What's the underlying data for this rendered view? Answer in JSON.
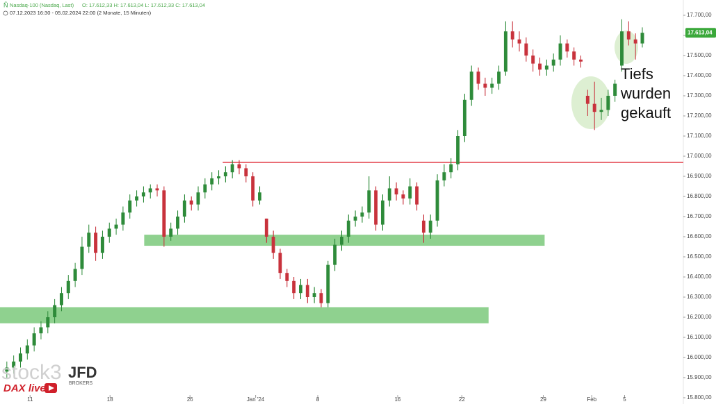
{
  "chart_data": {
    "type": "candlestick",
    "title": "Nasdaq-100 (Nasdaq, Last)",
    "ohlc_text": "O: 17.612,33  H: 17.613,04  L: 17.612,33  C: 17.613,04",
    "subtitle": "07.12.2023 16:30 - 05.02.2024 22:00   (2 Monate, 15 Minuten)",
    "up_color": "#2e8b3a",
    "down_color": "#c8323c",
    "x": [
      1,
      2,
      3,
      4,
      5,
      6,
      7,
      8,
      9,
      10,
      11,
      12,
      13,
      14,
      15,
      16,
      17,
      18,
      19,
      20,
      21,
      22,
      23,
      24,
      25,
      26,
      27,
      28,
      29,
      30,
      31,
      32,
      33,
      34,
      35,
      36,
      37,
      38,
      39,
      40,
      41,
      42,
      43,
      44,
      45,
      46,
      47,
      48,
      49,
      50,
      51,
      52,
      53,
      54,
      55,
      56,
      57,
      58,
      59,
      60,
      61,
      62,
      63,
      64,
      65,
      66,
      67,
      68,
      69,
      70,
      71,
      72,
      73,
      74,
      75,
      76,
      77,
      78,
      79,
      80,
      81,
      82,
      83,
      84,
      85,
      86,
      87,
      88,
      89,
      90,
      91,
      92,
      93,
      94
    ],
    "open": [
      15930,
      15950,
      15980,
      16020,
      16060,
      16120,
      16150,
      16200,
      16260,
      16320,
      16380,
      16440,
      16550,
      16620,
      16520,
      16600,
      16640,
      16660,
      16720,
      16780,
      16800,
      16820,
      16840,
      16830,
      16600,
      16640,
      16700,
      16780,
      16760,
      16820,
      16860,
      16890,
      16900,
      16920,
      16960,
      16940,
      16900,
      16780,
      16690,
      16600,
      16520,
      16420,
      16380,
      16320,
      16360,
      16300,
      16320,
      16270,
      16460,
      16560,
      16600,
      16680,
      16700,
      16720,
      16830,
      16660,
      16780,
      16840,
      16810,
      16790,
      16850,
      16680,
      16620,
      16680,
      16880,
      16920,
      16960,
      17100,
      17280,
      17420,
      17360,
      17340,
      17360,
      17420,
      17620,
      17580,
      17560,
      17500,
      17460,
      17430,
      17450,
      17480,
      17560,
      17520,
      17480,
      17300,
      17260,
      17220,
      17230,
      17300,
      17450,
      17620,
      17580,
      17560
    ],
    "high": [
      15980,
      16010,
      16050,
      16090,
      16150,
      16180,
      16230,
      16290,
      16350,
      16410,
      16470,
      16600,
      16660,
      16650,
      16630,
      16670,
      16690,
      16750,
      16810,
      16830,
      16850,
      16860,
      16860,
      16850,
      16670,
      16730,
      16810,
      16800,
      16850,
      16890,
      16920,
      16930,
      16950,
      16980,
      16980,
      16960,
      16920,
      16850,
      16690,
      16630,
      16540,
      16440,
      16400,
      16390,
      16390,
      16350,
      16340,
      16480,
      16590,
      16630,
      16710,
      16730,
      16750,
      16900,
      16850,
      16810,
      16900,
      16870,
      16830,
      16890,
      16870,
      16710,
      16710,
      16910,
      16960,
      16990,
      17130,
      17310,
      17450,
      17440,
      17390,
      17390,
      17450,
      17670,
      17670,
      17620,
      17590,
      17530,
      17490,
      17480,
      17510,
      17600,
      17580,
      17540,
      17500,
      17330,
      17370,
      17290,
      17330,
      17380,
      17680,
      17670,
      17610,
      17640
    ],
    "low": [
      15900,
      15920,
      15950,
      15990,
      16030,
      16090,
      16120,
      16170,
      16230,
      16290,
      16350,
      16410,
      16520,
      16480,
      16490,
      16570,
      16610,
      16630,
      16690,
      16750,
      16770,
      16790,
      16800,
      16550,
      16580,
      16610,
      16670,
      16730,
      16730,
      16790,
      16830,
      16860,
      16870,
      16890,
      16910,
      16870,
      16750,
      16760,
      16570,
      16490,
      16390,
      16350,
      16290,
      16290,
      16270,
      16270,
      16250,
      16250,
      16430,
      16530,
      16570,
      16650,
      16670,
      16690,
      16630,
      16630,
      16750,
      16780,
      16760,
      16760,
      16730,
      16570,
      16590,
      16650,
      16850,
      16890,
      16930,
      17070,
      17250,
      17330,
      17300,
      17310,
      17330,
      17400,
      17540,
      17520,
      17470,
      17420,
      17400,
      17400,
      17420,
      17450,
      17490,
      17450,
      17440,
      17200,
      17130,
      17180,
      17200,
      17270,
      17420,
      17550,
      17480,
      17540
    ],
    "close": [
      15950,
      15980,
      16020,
      16060,
      16120,
      16150,
      16200,
      16260,
      16320,
      16380,
      16440,
      16550,
      16620,
      16520,
      16600,
      16640,
      16660,
      16720,
      16780,
      16800,
      16820,
      16840,
      16830,
      16600,
      16640,
      16700,
      16780,
      16760,
      16820,
      16860,
      16890,
      16900,
      16920,
      16960,
      16940,
      16900,
      16780,
      16820,
      16600,
      16520,
      16420,
      16380,
      16320,
      16360,
      16300,
      16320,
      16270,
      16460,
      16560,
      16600,
      16680,
      16700,
      16720,
      16830,
      16660,
      16780,
      16840,
      16810,
      16790,
      16850,
      16760,
      16620,
      16680,
      16880,
      16920,
      16960,
      17100,
      17280,
      17420,
      17360,
      17340,
      17360,
      17420,
      17620,
      17580,
      17560,
      17500,
      17460,
      17430,
      17450,
      17480,
      17560,
      17520,
      17480,
      17470,
      17260,
      17220,
      17230,
      17300,
      17360,
      17620,
      17580,
      17560,
      17613.04
    ],
    "xlim": [
      0,
      100
    ],
    "ylim": [
      15800,
      17700
    ],
    "xticks": [
      {
        "value": 4.4,
        "label": "11"
      },
      {
        "value": 16.1,
        "label": "18"
      },
      {
        "value": 27.8,
        "label": "26"
      },
      {
        "value": 37.4,
        "label": "Jan '24"
      },
      {
        "value": 46.5,
        "label": "8"
      },
      {
        "value": 58.2,
        "label": "16"
      },
      {
        "value": 67.6,
        "label": "22"
      },
      {
        "value": 79.5,
        "label": "29"
      },
      {
        "value": 86.6,
        "label": "Feb"
      },
      {
        "value": 91.4,
        "label": "5"
      }
    ],
    "yticks": [
      {
        "value": 17700,
        "label": "17.700,00"
      },
      {
        "value": 17600,
        "label": "17.600,00"
      },
      {
        "value": 17500,
        "label": "17.500,00"
      },
      {
        "value": 17400,
        "label": "17.400,00"
      },
      {
        "value": 17300,
        "label": "17.300,00"
      },
      {
        "value": 17200,
        "label": "17.200,00"
      },
      {
        "value": 17100,
        "label": "17.100,00"
      },
      {
        "value": 17000,
        "label": "17.000,00"
      },
      {
        "value": 16900,
        "label": "16.900,00"
      },
      {
        "value": 16800,
        "label": "16.800,00"
      },
      {
        "value": 16700,
        "label": "16.700,00"
      },
      {
        "value": 16600,
        "label": "16.600,00"
      },
      {
        "value": 16500,
        "label": "16.500,00"
      },
      {
        "value": 16400,
        "label": "16.400,00"
      },
      {
        "value": 16300,
        "label": "16.300,00"
      },
      {
        "value": 16200,
        "label": "16.200,00"
      },
      {
        "value": 16100,
        "label": "16.100,00"
      },
      {
        "value": 16000,
        "label": "16.000,00"
      },
      {
        "value": 15900,
        "label": "15.900,00"
      },
      {
        "value": 15800,
        "label": "15.800,00"
      }
    ],
    "last_price": {
      "value": 17613.04,
      "label": "17.613,04"
    },
    "zones": [
      {
        "low": 16555,
        "high": 16610,
        "x": [
          21.1,
          79.7
        ],
        "color": "#8fd18f"
      },
      {
        "low": 16170,
        "high": 16250,
        "x": [
          0,
          71.5
        ],
        "color": "#8fd18f"
      }
    ],
    "resistance": {
      "value": 16970,
      "x": [
        32.6,
        100
      ],
      "color": "#e0303c"
    },
    "annotation": [
      "Tiefs",
      "wurden",
      "gekauft"
    ],
    "watermark": {
      "brand": "stock3",
      "broker": "JFD",
      "broker_sub": "BROKERS",
      "show": "DAX live"
    }
  }
}
